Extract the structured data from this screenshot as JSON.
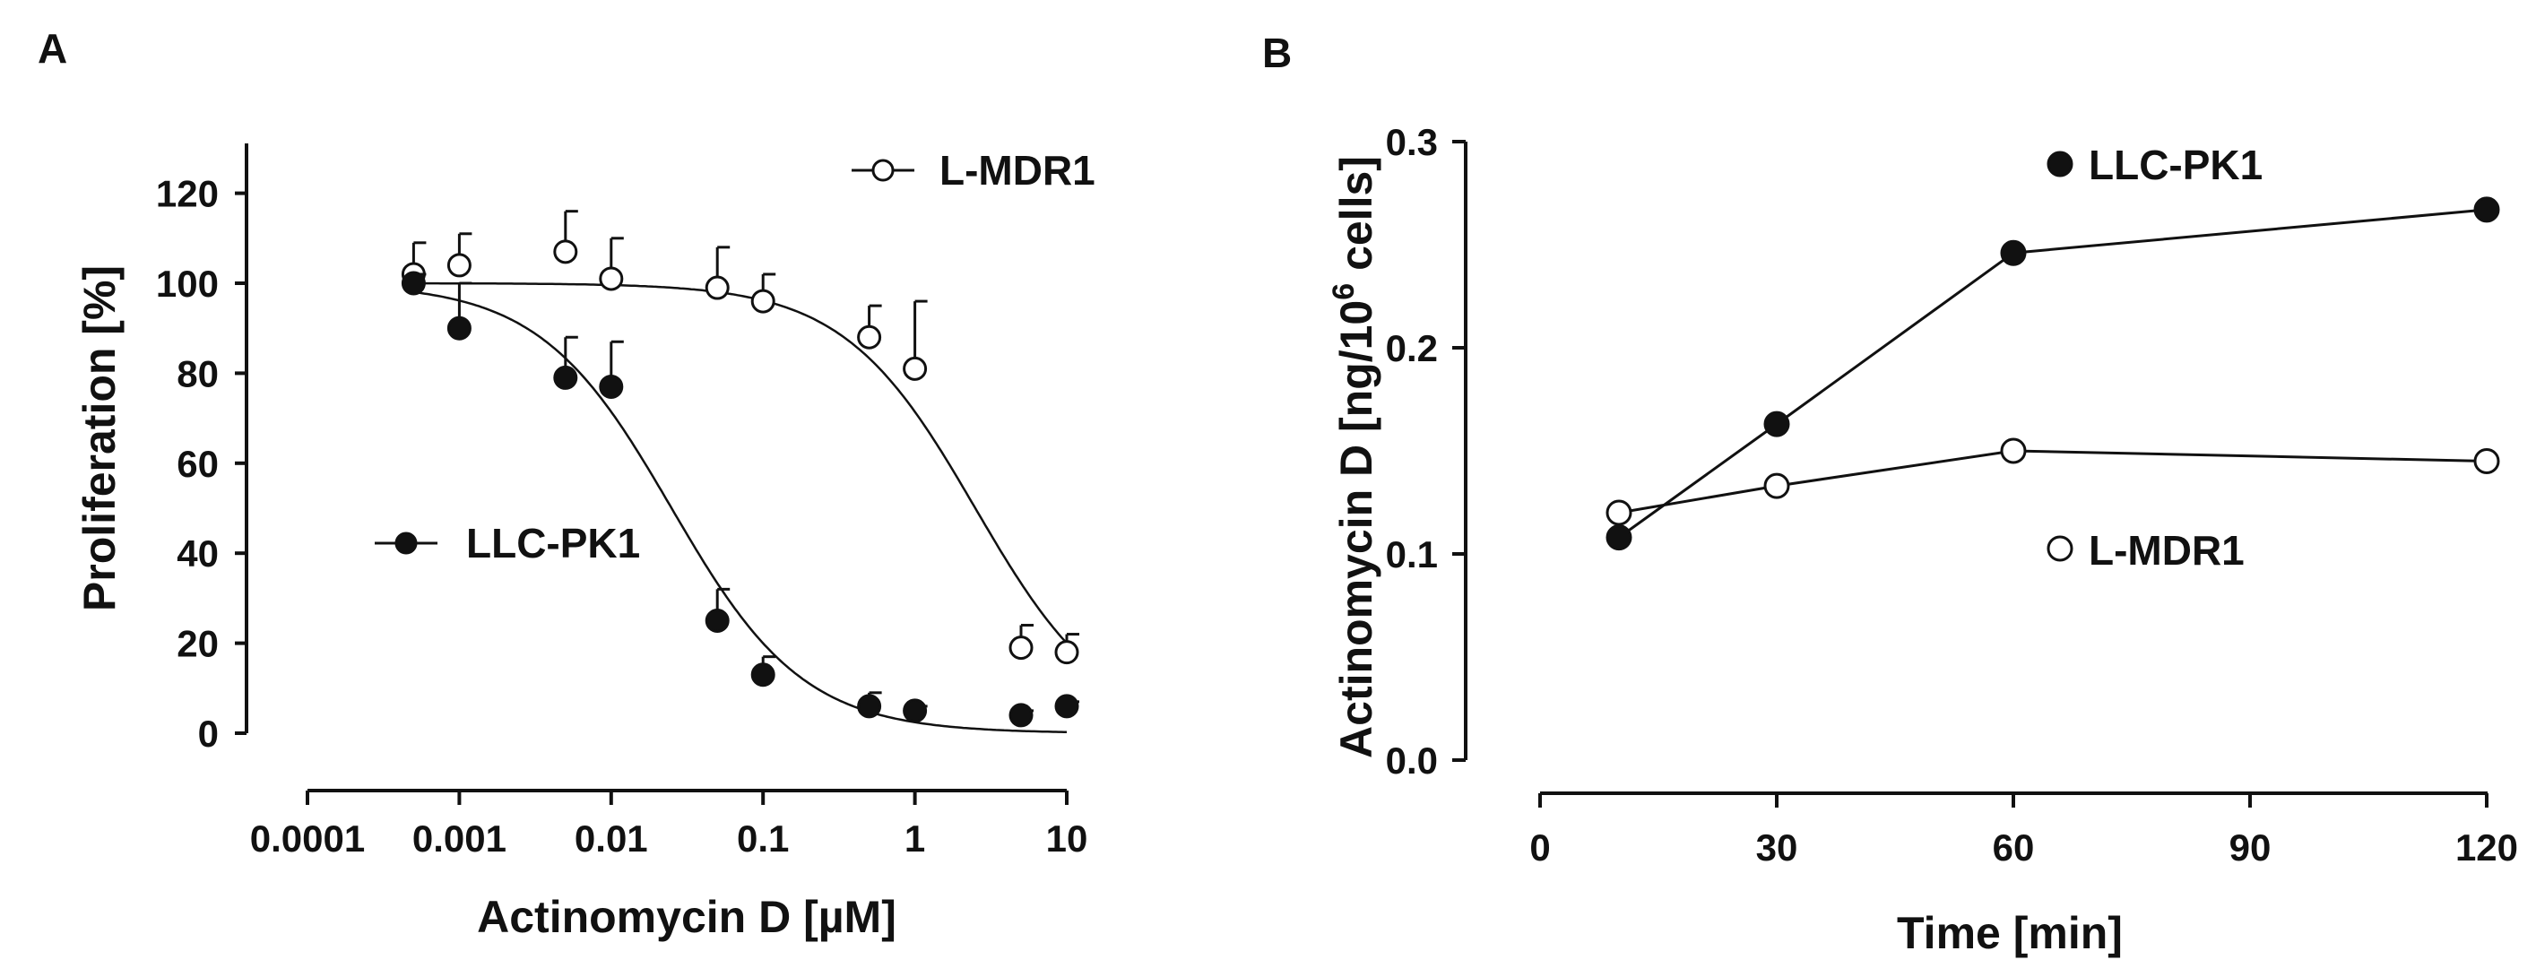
{
  "chart_data": [
    {
      "type": "scatter",
      "panel_label": "A",
      "xlabel": "Actinomycin D [µM]",
      "ylabel": "Proliferation [%]",
      "xscale": "log",
      "xlim": [
        0.0001,
        10
      ],
      "ylim": [
        0,
        120
      ],
      "xticks": [
        0.0001,
        0.001,
        0.01,
        0.1,
        1,
        10
      ],
      "xtick_labels": [
        "0.0001",
        "0.001",
        "0.01",
        "0.1",
        "1",
        "10"
      ],
      "yticks": [
        0,
        20,
        40,
        60,
        80,
        100,
        120
      ],
      "ytick_labels": [
        "0",
        "20",
        "40",
        "60",
        "80",
        "100",
        "120"
      ],
      "series": [
        {
          "name": "L-MDR1",
          "marker": "open-circle",
          "x": [
            0.0005,
            0.001,
            0.005,
            0.01,
            0.05,
            0.1,
            0.5,
            1,
            5,
            10
          ],
          "y": [
            102,
            104,
            107,
            101,
            99,
            96,
            88,
            81,
            19,
            18
          ],
          "error_up": [
            7,
            7,
            9,
            9,
            9,
            6,
            7,
            15,
            5,
            4
          ],
          "fit": {
            "top": 100,
            "bottom": 0,
            "ic50": 2.5,
            "hill": 1
          }
        },
        {
          "name": "LLC-PK1",
          "marker": "filled-circle",
          "x": [
            0.0005,
            0.001,
            0.005,
            0.01,
            0.05,
            0.1,
            0.5,
            1,
            5,
            10
          ],
          "y": [
            100,
            90,
            79,
            77,
            25,
            13,
            6,
            5,
            4,
            6
          ],
          "error_up": [
            2,
            10,
            9,
            10,
            7,
            4,
            3,
            1,
            1,
            1
          ],
          "fit": {
            "top": 100,
            "bottom": 0,
            "ic50": 0.025,
            "hill": 1
          }
        }
      ],
      "grid": false,
      "legend": "inline"
    },
    {
      "type": "line",
      "panel_label": "B",
      "xlabel": "Time [min]",
      "ylabel": {
        "prefix": "Actinomycin D [ng/10",
        "exponent": "6",
        "suffix": " cells]"
      },
      "xlim": [
        0,
        120
      ],
      "ylim": [
        0,
        0.3
      ],
      "xticks": [
        0,
        30,
        60,
        90,
        120
      ],
      "xtick_labels": [
        "0",
        "30",
        "60",
        "90",
        "120"
      ],
      "yticks": [
        0,
        0.1,
        0.2,
        0.3
      ],
      "ytick_labels": [
        "0.0",
        "0.1",
        "0.2",
        "0.3"
      ],
      "series": [
        {
          "name": "LLC-PK1",
          "marker": "filled-circle",
          "x": [
            10,
            30,
            60,
            120
          ],
          "y": [
            0.108,
            0.163,
            0.246,
            0.267
          ]
        },
        {
          "name": "L-MDR1",
          "marker": "open-circle",
          "x": [
            10,
            30,
            60,
            120
          ],
          "y": [
            0.12,
            0.133,
            0.15,
            0.145
          ]
        }
      ],
      "grid": false,
      "legend": "inline"
    }
  ]
}
